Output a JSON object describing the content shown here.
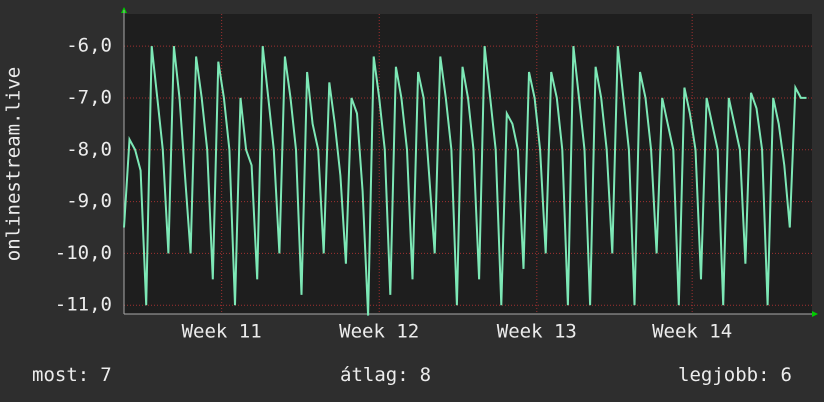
{
  "chart_data": {
    "type": "line",
    "y_label": "onlinestream.live",
    "x": [
      0,
      0.25,
      0.5,
      0.75,
      1,
      1.25,
      1.5,
      1.75,
      2,
      2.25,
      2.5,
      2.75,
      3,
      3.25,
      3.5,
      3.75,
      4,
      4.25,
      4.5,
      4.75,
      5,
      5.25,
      5.5,
      5.75,
      6,
      6.25,
      6.5,
      6.75,
      7,
      7.25,
      7.5,
      7.75,
      8,
      8.25,
      8.5,
      8.75,
      9,
      9.25,
      9.5,
      9.75,
      10,
      10.25,
      10.5,
      10.75,
      11,
      11.25,
      11.5,
      11.75,
      12,
      12.25,
      12.5,
      12.75,
      13,
      13.25,
      13.5,
      13.75,
      14,
      14.25,
      14.5,
      14.75,
      15,
      15.25,
      15.5,
      15.75,
      16,
      16.25,
      16.5,
      16.75,
      17,
      17.25,
      17.5,
      17.75,
      18,
      18.25,
      18.5,
      18.75,
      19,
      19.25,
      19.5,
      19.75,
      20,
      20.25,
      20.5,
      20.75,
      21,
      21.25,
      21.5,
      21.75,
      22,
      22.25,
      22.5,
      22.75,
      23,
      23.25,
      23.5,
      23.75,
      24,
      24.25,
      24.5,
      24.75,
      25,
      25.25,
      25.5,
      25.75,
      26,
      26.25,
      26.5,
      26.75,
      27,
      27.25,
      27.5,
      27.75,
      28,
      28.25,
      28.5,
      28.75,
      29,
      29.25,
      29.5,
      29.75,
      30,
      30.25,
      30.5,
      30.75
    ],
    "series": [
      {
        "color": "#7de8b6",
        "values": [
          -9.5,
          -7.8,
          -8.0,
          -8.4,
          -11,
          -6.0,
          -7.0,
          -8.0,
          -10,
          -6.0,
          -7.0,
          -8.5,
          -10,
          -6.2,
          -7.0,
          -8.0,
          -10.5,
          -6.3,
          -7.0,
          -8.0,
          -11,
          -7.0,
          -8.0,
          -8.3,
          -10.5,
          -6.0,
          -7.0,
          -8.0,
          -10,
          -6.2,
          -7.0,
          -8.0,
          -10.8,
          -6.5,
          -7.5,
          -8.0,
          -10,
          -6.7,
          -7.5,
          -8.5,
          -10.2,
          -7.0,
          -7.3,
          -8.8,
          -11.2,
          -6.2,
          -7.0,
          -8.0,
          -10.8,
          -6.4,
          -7.0,
          -8.0,
          -10.5,
          -6.5,
          -7.0,
          -8.5,
          -10,
          -6.2,
          -7.0,
          -8.0,
          -11,
          -6.4,
          -7.0,
          -8.0,
          -10.5,
          -6.0,
          -7.0,
          -8.0,
          -11,
          -7.3,
          -7.5,
          -8.0,
          -10.3,
          -6.5,
          -7.0,
          -8.0,
          -10,
          -6.5,
          -7.0,
          -8.0,
          -11,
          -6.0,
          -7.0,
          -8.0,
          -11,
          -6.4,
          -7.0,
          -8.0,
          -10,
          -6.0,
          -7.0,
          -8.0,
          -11,
          -6.5,
          -7.0,
          -8.0,
          -10,
          -7.0,
          -7.5,
          -8.0,
          -11,
          -6.8,
          -7.3,
          -8.0,
          -10.5,
          -7.0,
          -7.5,
          -8.0,
          -11,
          -7.0,
          -7.5,
          -8.0,
          -10.2,
          -6.9,
          -7.2,
          -8.0,
          -11,
          -7.0,
          -7.5,
          -8.3,
          -9.5,
          -6.8,
          -7.0,
          -7.0
        ]
      }
    ],
    "xlim": [
      0,
      31
    ],
    "xticks": [
      {
        "value": 4.4,
        "label": "Week 11"
      },
      {
        "value": 11.5,
        "label": "Week 12"
      },
      {
        "value": 18.6,
        "label": "Week 13"
      },
      {
        "value": 25.6,
        "label": "Week 14"
      }
    ],
    "ylim": [
      -11.17,
      -5.38
    ],
    "yticks": [
      {
        "value": -6,
        "label": "-6,0"
      },
      {
        "value": -7,
        "label": "-7,0"
      },
      {
        "value": -8,
        "label": "-8,0"
      },
      {
        "value": -9,
        "label": "-9,0"
      },
      {
        "value": -10,
        "label": "-10,0"
      },
      {
        "value": -11,
        "label": "-11,0"
      }
    ],
    "grid": true,
    "stats": [
      {
        "label": "most:",
        "value": 7
      },
      {
        "label": "átlag:",
        "value": 8
      },
      {
        "label": "legjobb:",
        "value": 6
      }
    ]
  }
}
